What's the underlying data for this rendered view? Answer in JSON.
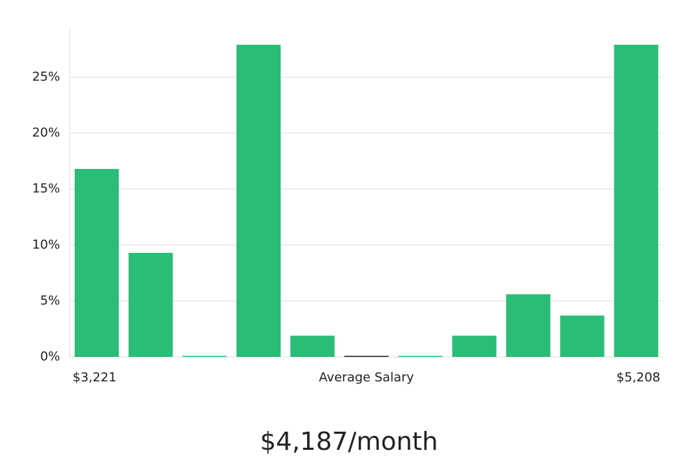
{
  "chart_data": {
    "type": "bar",
    "categories": [
      null,
      null,
      null,
      null,
      null,
      null,
      null,
      null,
      null,
      null,
      null
    ],
    "values": [
      16.8,
      9.3,
      0,
      27.9,
      1.9,
      0,
      0,
      1.9,
      5.6,
      3.7,
      27.9
    ],
    "colors": [
      "#2bbd77",
      "#2bbd77",
      "#2bbd77",
      "#2bbd77",
      "#2bbd77",
      "#222222",
      "#2bbd77",
      "#2bbd77",
      "#2bbd77",
      "#2bbd77",
      "#2bbd77"
    ],
    "ylim": [
      0,
      29.4
    ],
    "yticks": [
      {
        "value": 0,
        "label": "0%"
      },
      {
        "value": 5,
        "label": "5%"
      },
      {
        "value": 10,
        "label": "10%"
      },
      {
        "value": 15,
        "label": "15%"
      },
      {
        "value": 20,
        "label": "20%"
      },
      {
        "value": 25,
        "label": "25%"
      }
    ],
    "grid": true,
    "x_min_label": "$3,221",
    "xlabel": "Average Salary",
    "x_max_label": "$5,208",
    "summary": "$4,187/month"
  }
}
